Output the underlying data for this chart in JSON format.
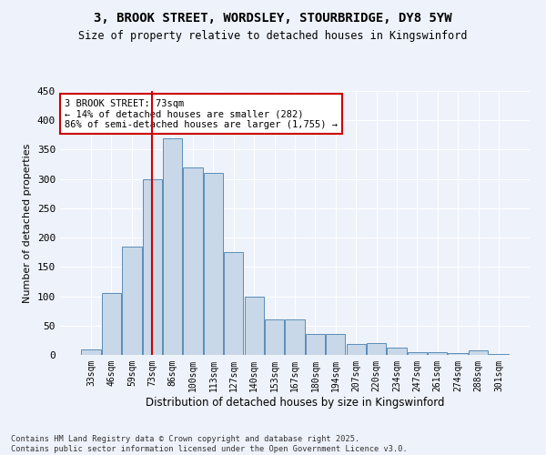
{
  "title1": "3, BROOK STREET, WORDSLEY, STOURBRIDGE, DY8 5YW",
  "title2": "Size of property relative to detached houses in Kingswinford",
  "xlabel": "Distribution of detached houses by size in Kingswinford",
  "ylabel": "Number of detached properties",
  "categories": [
    "33sqm",
    "46sqm",
    "59sqm",
    "73sqm",
    "86sqm",
    "100sqm",
    "113sqm",
    "127sqm",
    "140sqm",
    "153sqm",
    "167sqm",
    "180sqm",
    "194sqm",
    "207sqm",
    "220sqm",
    "234sqm",
    "247sqm",
    "261sqm",
    "274sqm",
    "288sqm",
    "301sqm"
  ],
  "values": [
    10,
    105,
    185,
    300,
    370,
    320,
    310,
    175,
    100,
    60,
    60,
    35,
    35,
    18,
    20,
    12,
    5,
    4,
    3,
    7,
    2
  ],
  "bar_color": "#c8d8e8",
  "bar_edge_color": "#5b8db8",
  "vline_x": 3,
  "vline_color": "#cc0000",
  "annotation_text": "3 BROOK STREET: 73sqm\n← 14% of detached houses are smaller (282)\n86% of semi-detached houses are larger (1,755) →",
  "annotation_box_color": "#ffffff",
  "annotation_box_edge": "#cc0000",
  "footer_text": "Contains HM Land Registry data © Crown copyright and database right 2025.\nContains public sector information licensed under the Open Government Licence v3.0.",
  "bg_color": "#eef2fa",
  "grid_color": "#ffffff",
  "ylim": [
    0,
    450
  ],
  "yticks": [
    0,
    50,
    100,
    150,
    200,
    250,
    300,
    350,
    400,
    450
  ]
}
